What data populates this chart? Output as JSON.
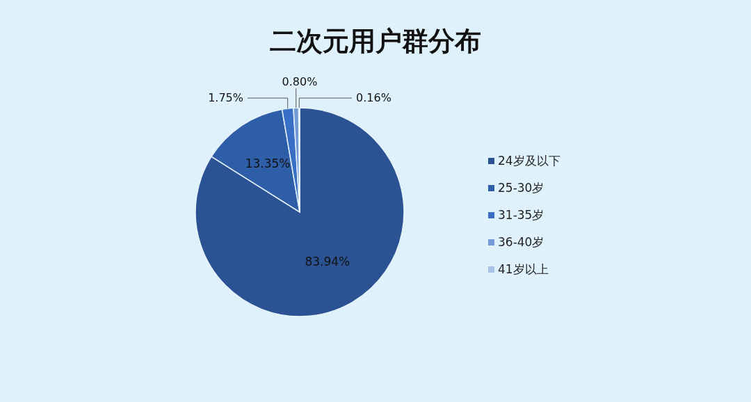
{
  "chart_data": {
    "type": "pie",
    "title": "二次元用户群分布",
    "categories": [
      "24岁及以下",
      "25-30岁",
      "31-35岁",
      "36-40岁",
      "41岁以上"
    ],
    "values": [
      83.94,
      13.35,
      1.75,
      0.8,
      0.16
    ],
    "value_labels": [
      "83.94%",
      "13.35%",
      "1.75%",
      "0.80%",
      "0.16%"
    ],
    "colors": [
      "#2b5394",
      "#2f5ea8",
      "#3a6fc6",
      "#7399d6",
      "#a9c3e8"
    ],
    "legend": "right"
  }
}
